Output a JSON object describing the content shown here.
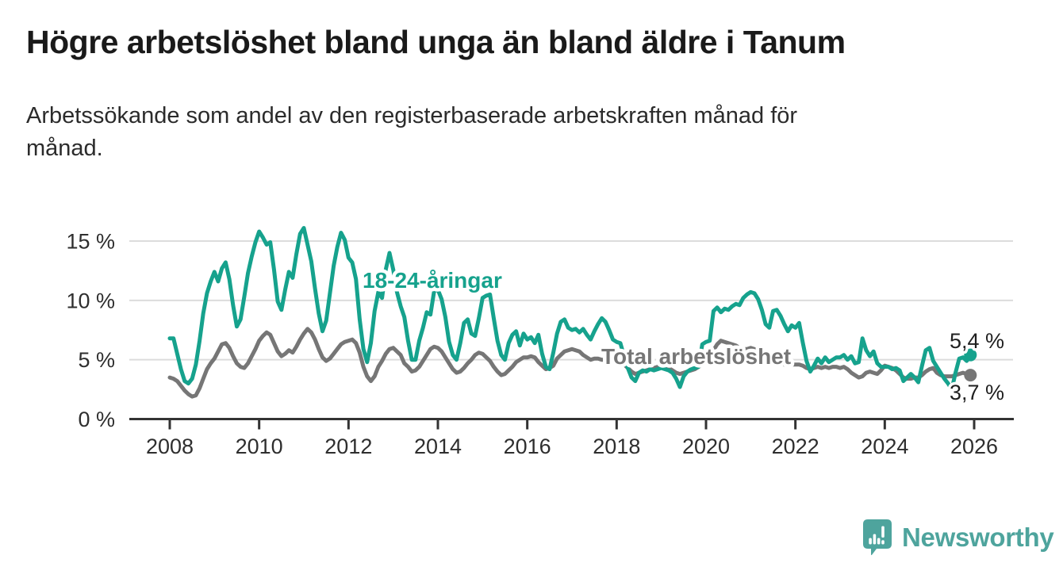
{
  "header": {
    "title": "Högre arbetslöshet bland unga än bland äldre i Tanum",
    "subtitle_lines": [
      "Arbetssökande som andel av den registerbaserade arbetskraften månad för",
      "månad."
    ]
  },
  "chart_data": {
    "type": "line",
    "unit": "%",
    "frequency": "monthly",
    "x_start": "2008-01",
    "x_end": "2025-12",
    "grid": true,
    "ylim": [
      0,
      16.5
    ],
    "y_ticks": [
      {
        "value": 0,
        "label": "0 %"
      },
      {
        "value": 5,
        "label": "5 %"
      },
      {
        "value": 10,
        "label": "10 %"
      },
      {
        "value": 15,
        "label": "15 %"
      }
    ],
    "x_ticks": [
      {
        "year": 2008,
        "label": "2008"
      },
      {
        "year": 2010,
        "label": "2010"
      },
      {
        "year": 2012,
        "label": "2012"
      },
      {
        "year": 2014,
        "label": "2014"
      },
      {
        "year": 2016,
        "label": "2016"
      },
      {
        "year": 2018,
        "label": "2018"
      },
      {
        "year": 2020,
        "label": "2020"
      },
      {
        "year": 2022,
        "label": "2022"
      },
      {
        "year": 2024,
        "label": "2024"
      },
      {
        "year": 2026,
        "label": "2026"
      }
    ],
    "series": [
      {
        "name": "18-24-åringar",
        "color": "#16A28D",
        "end_label": "5,4 %",
        "values": [
          6.8,
          6.8,
          5.5,
          4.2,
          3.2,
          3.0,
          3.4,
          4.6,
          6.6,
          8.9,
          10.6,
          11.6,
          12.4,
          11.6,
          12.7,
          13.2,
          11.8,
          9.6,
          7.8,
          8.4,
          10.3,
          12.3,
          13.7,
          14.9,
          15.8,
          15.3,
          14.7,
          14.9,
          12.6,
          9.9,
          9.2,
          10.9,
          12.4,
          11.9,
          13.9,
          15.6,
          16.1,
          14.7,
          13.3,
          11.0,
          8.9,
          7.4,
          8.3,
          10.6,
          12.9,
          14.5,
          15.7,
          15.1,
          13.6,
          13.2,
          11.8,
          8.4,
          5.9,
          4.8,
          6.4,
          9.1,
          10.7,
          10.2,
          12.6,
          14.0,
          12.6,
          10.7,
          9.5,
          8.6,
          6.6,
          5.0,
          5.0,
          6.6,
          7.7,
          9.0,
          8.8,
          10.8,
          10.9,
          10.1,
          8.6,
          6.5,
          5.4,
          5.0,
          6.4,
          8.1,
          8.4,
          7.2,
          7.0,
          8.5,
          10.2,
          10.4,
          10.5,
          8.5,
          6.6,
          5.4,
          5.0,
          6.4,
          7.1,
          7.4,
          6.2,
          7.2,
          6.7,
          6.9,
          6.4,
          7.1,
          5.5,
          4.4,
          4.2,
          5.6,
          7.2,
          8.2,
          8.4,
          7.7,
          7.5,
          7.6,
          7.3,
          7.6,
          7.1,
          6.7,
          7.4,
          8.0,
          8.5,
          8.2,
          7.5,
          6.7,
          6.5,
          6.4,
          5.3,
          4.3,
          3.5,
          3.2,
          3.9,
          4.1,
          4.0,
          4.2,
          4.1,
          4.2,
          4.3,
          4.2,
          4.1,
          3.9,
          3.4,
          2.7,
          3.6,
          4.0,
          4.2,
          4.3,
          4.4,
          6.3,
          6.5,
          6.6,
          9.1,
          9.4,
          9.0,
          9.3,
          9.2,
          9.5,
          9.7,
          9.6,
          10.2,
          10.5,
          10.7,
          10.6,
          10.1,
          9.2,
          8.0,
          7.7,
          9.1,
          9.2,
          8.7,
          8.0,
          7.4,
          7.9,
          7.7,
          8.1,
          6.4,
          4.9,
          4.0,
          4.5,
          5.1,
          4.7,
          5.2,
          4.8,
          5.0,
          5.2,
          5.2,
          5.4,
          5.0,
          5.3,
          4.7,
          4.8,
          6.8,
          5.8,
          5.3,
          5.7,
          4.7,
          4.4,
          4.4,
          4.4,
          4.2,
          4.3,
          4.1,
          3.2,
          3.5,
          3.8,
          3.5,
          3.1,
          4.5,
          5.8,
          6.0,
          4.9,
          4.4,
          3.9,
          3.4,
          3.0,
          2.5,
          3.9,
          5.1,
          5.2,
          4.9,
          5.4
        ]
      },
      {
        "name": "Total arbetslöshet",
        "color": "#767676",
        "end_label": "3,7 %",
        "values": [
          3.5,
          3.4,
          3.2,
          2.8,
          2.4,
          2.1,
          1.9,
          2.0,
          2.6,
          3.4,
          4.2,
          4.7,
          5.1,
          5.7,
          6.3,
          6.4,
          6.0,
          5.3,
          4.7,
          4.4,
          4.3,
          4.7,
          5.3,
          5.9,
          6.6,
          7.0,
          7.3,
          7.1,
          6.4,
          5.7,
          5.3,
          5.5,
          5.8,
          5.6,
          6.1,
          6.7,
          7.2,
          7.6,
          7.3,
          6.7,
          5.9,
          5.2,
          4.9,
          5.1,
          5.5,
          5.9,
          6.3,
          6.5,
          6.6,
          6.7,
          6.4,
          5.6,
          4.4,
          3.6,
          3.2,
          3.6,
          4.4,
          4.9,
          5.5,
          5.9,
          6.0,
          5.7,
          5.4,
          4.7,
          4.4,
          4.0,
          4.1,
          4.4,
          4.9,
          5.4,
          5.9,
          6.1,
          6.0,
          5.7,
          5.2,
          4.7,
          4.2,
          3.9,
          4.0,
          4.3,
          4.7,
          5.0,
          5.4,
          5.6,
          5.5,
          5.2,
          4.9,
          4.4,
          4.0,
          3.7,
          3.8,
          4.1,
          4.4,
          4.8,
          5.0,
          5.2,
          5.2,
          5.3,
          5.2,
          4.8,
          4.5,
          4.2,
          4.3,
          4.5,
          5.1,
          5.4,
          5.7,
          5.8,
          5.9,
          5.8,
          5.7,
          5.4,
          5.2,
          5.0,
          5.1,
          5.1,
          5.0,
          5.0,
          4.9,
          5.0,
          4.9,
          4.8,
          4.6,
          4.3,
          4.0,
          3.8,
          3.9,
          4.0,
          4.1,
          4.2,
          4.3,
          4.4,
          4.5,
          4.4,
          4.3,
          4.1,
          3.9,
          3.8,
          3.9,
          4.0,
          4.1,
          4.2,
          4.4,
          4.6,
          4.8,
          5.0,
          5.8,
          6.3,
          6.6,
          6.5,
          6.4,
          6.3,
          6.2,
          6.0,
          5.9,
          5.9,
          6.0,
          5.9,
          5.7,
          5.5,
          5.2,
          4.9,
          4.8,
          4.8,
          4.7,
          4.6,
          4.6,
          4.6,
          4.6,
          4.6,
          4.5,
          4.3,
          4.2,
          4.3,
          4.4,
          4.3,
          4.4,
          4.3,
          4.4,
          4.4,
          4.3,
          4.4,
          4.2,
          3.9,
          3.7,
          3.5,
          3.6,
          3.9,
          4.0,
          3.9,
          3.8,
          4.1,
          4.5,
          4.4,
          4.3,
          4.1,
          3.8,
          3.5,
          3.4,
          3.4,
          3.5,
          3.5,
          3.7,
          4.0,
          4.2,
          4.3,
          3.9,
          3.7,
          3.6,
          3.6,
          3.6,
          3.7,
          3.8,
          3.9,
          3.8,
          3.7
        ]
      }
    ]
  },
  "footer": {
    "brand": "Newsworthy",
    "brand_color": "#4EA49D",
    "logo_icon": "bar-chart-speech-bubble-icon"
  }
}
